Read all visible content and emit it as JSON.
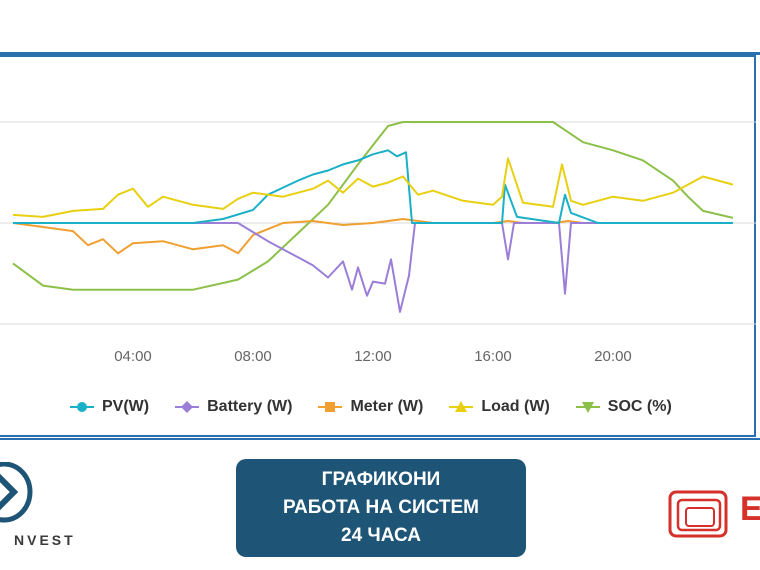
{
  "chart_data": {
    "type": "line",
    "x_ticks": [
      "04:00",
      "08:00",
      "12:00",
      "16:00",
      "20:00"
    ],
    "x_hours_range": [
      0,
      24
    ],
    "ylim": [
      -100,
      100
    ],
    "grid": "horizontal",
    "legend_position": "bottom",
    "series": [
      {
        "name": "PV(W)",
        "color": "#1ab0c8",
        "marker": "circle",
        "x": [
          0,
          6.0,
          7.0,
          8.0,
          8.5,
          9.0,
          9.5,
          10.0,
          10.5,
          11.0,
          11.5,
          12.0,
          12.5,
          12.8,
          13.1,
          13.3,
          16.3,
          16.4,
          16.6,
          16.8,
          18.2,
          18.4,
          18.6,
          19.5,
          24
        ],
        "y": [
          0,
          0,
          4,
          13,
          28,
          35,
          42,
          48,
          52,
          58,
          62,
          68,
          72,
          66,
          70,
          0,
          0,
          38,
          22,
          6,
          0,
          28,
          10,
          0,
          0
        ]
      },
      {
        "name": "Battery (W)",
        "color": "#9a7ed8",
        "marker": "diamond",
        "x": [
          0,
          7.5,
          8.5,
          9.5,
          10.0,
          10.5,
          11.0,
          11.3,
          11.5,
          11.8,
          12.0,
          12.4,
          12.6,
          12.9,
          13.2,
          13.4,
          16.3,
          16.5,
          16.7,
          18.2,
          18.4,
          18.6,
          24
        ],
        "y": [
          0,
          0,
          -18,
          -34,
          -42,
          -54,
          -38,
          -66,
          -44,
          -72,
          -58,
          -60,
          -36,
          -88,
          -52,
          0,
          0,
          -36,
          0,
          0,
          -70,
          0,
          0
        ]
      },
      {
        "name": "Meter (W)",
        "color": "#f0a030",
        "marker": "square",
        "x": [
          0,
          1.0,
          2.0,
          2.5,
          3.0,
          3.5,
          4.0,
          5.0,
          6.0,
          7.0,
          7.5,
          8.0,
          8.5,
          9.0,
          10.0,
          11.0,
          12.0,
          13.0,
          14.0,
          16.0,
          16.5,
          17.0,
          18.0,
          18.5,
          19.0,
          24
        ],
        "y": [
          0,
          -4,
          -8,
          -22,
          -16,
          -30,
          -20,
          -18,
          -26,
          -22,
          -30,
          -12,
          -6,
          0,
          2,
          -2,
          0,
          4,
          0,
          0,
          2,
          0,
          0,
          2,
          0,
          0
        ]
      },
      {
        "name": "Load (W)",
        "color": "#e8d010",
        "marker": "triangle",
        "x": [
          0,
          1.0,
          2.0,
          3.0,
          3.5,
          4.0,
          4.5,
          5.0,
          6.0,
          7.0,
          7.5,
          8.0,
          9.0,
          10.0,
          10.5,
          11.0,
          11.5,
          12.0,
          12.5,
          13.0,
          13.5,
          14.0,
          15.0,
          16.0,
          16.3,
          16.5,
          17.0,
          18.0,
          18.3,
          18.6,
          19.0,
          20.0,
          21.0,
          22.0,
          23.0,
          24
        ],
        "y": [
          8,
          6,
          12,
          14,
          28,
          34,
          16,
          26,
          18,
          14,
          24,
          30,
          26,
          34,
          42,
          30,
          44,
          36,
          40,
          46,
          28,
          32,
          22,
          18,
          26,
          64,
          20,
          16,
          58,
          22,
          18,
          26,
          22,
          30,
          46,
          38
        ]
      },
      {
        "name": "SOC (%)",
        "color": "#8cc048",
        "marker": "triangle-down",
        "x": [
          0,
          1.0,
          2.0,
          3.0,
          6.0,
          7.5,
          8.5,
          9.5,
          10.5,
          11.5,
          12.5,
          13.0,
          14.0,
          15.0,
          16.0,
          17.0,
          18.0,
          18.5,
          19.0,
          20.0,
          21.0,
          22.0,
          22.5,
          23.0,
          24
        ],
        "y": [
          -40,
          -62,
          -66,
          -66,
          -66,
          -56,
          -38,
          -10,
          18,
          58,
          96,
          100,
          100,
          100,
          100,
          100,
          100,
          90,
          80,
          72,
          62,
          42,
          26,
          12,
          5
        ]
      }
    ]
  },
  "caption": {
    "line1": "ГРАФИКОНИ",
    "line2": "РАБОТА НА СИСТЕМ",
    "line3": "24 ЧАСА"
  },
  "logos": {
    "left_text": "NVEST",
    "right_mark": "E"
  },
  "colors": {
    "frame": "#2a6fb0",
    "caption_bg": "#1e5577",
    "grid": "#d8d8d8",
    "axis_text": "#666666"
  }
}
